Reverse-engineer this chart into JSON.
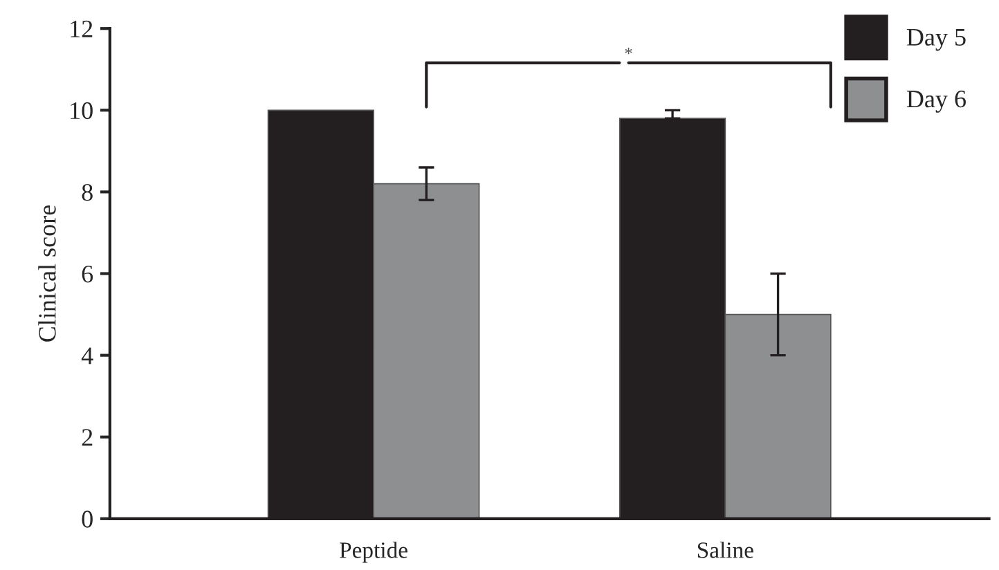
{
  "chart_data": {
    "type": "bar",
    "ylabel": "Clinical score",
    "categories": [
      "Peptide",
      "Saline"
    ],
    "series": [
      {
        "name": "Day 5",
        "color": "#231f20",
        "values": [
          10.0,
          9.8
        ],
        "errors": [
          null,
          [
            9.8,
            10.0
          ]
        ]
      },
      {
        "name": "Day 6",
        "color": "#8e8f91",
        "values": [
          8.2,
          5.0
        ],
        "errors": [
          [
            7.8,
            8.6
          ],
          [
            4.0,
            6.0
          ]
        ]
      }
    ],
    "ylim": [
      0,
      12
    ],
    "yticks": [
      0,
      2,
      4,
      6,
      8,
      10,
      12
    ],
    "grid": false,
    "legend": "top right",
    "annotations": [
      "*"
    ]
  }
}
